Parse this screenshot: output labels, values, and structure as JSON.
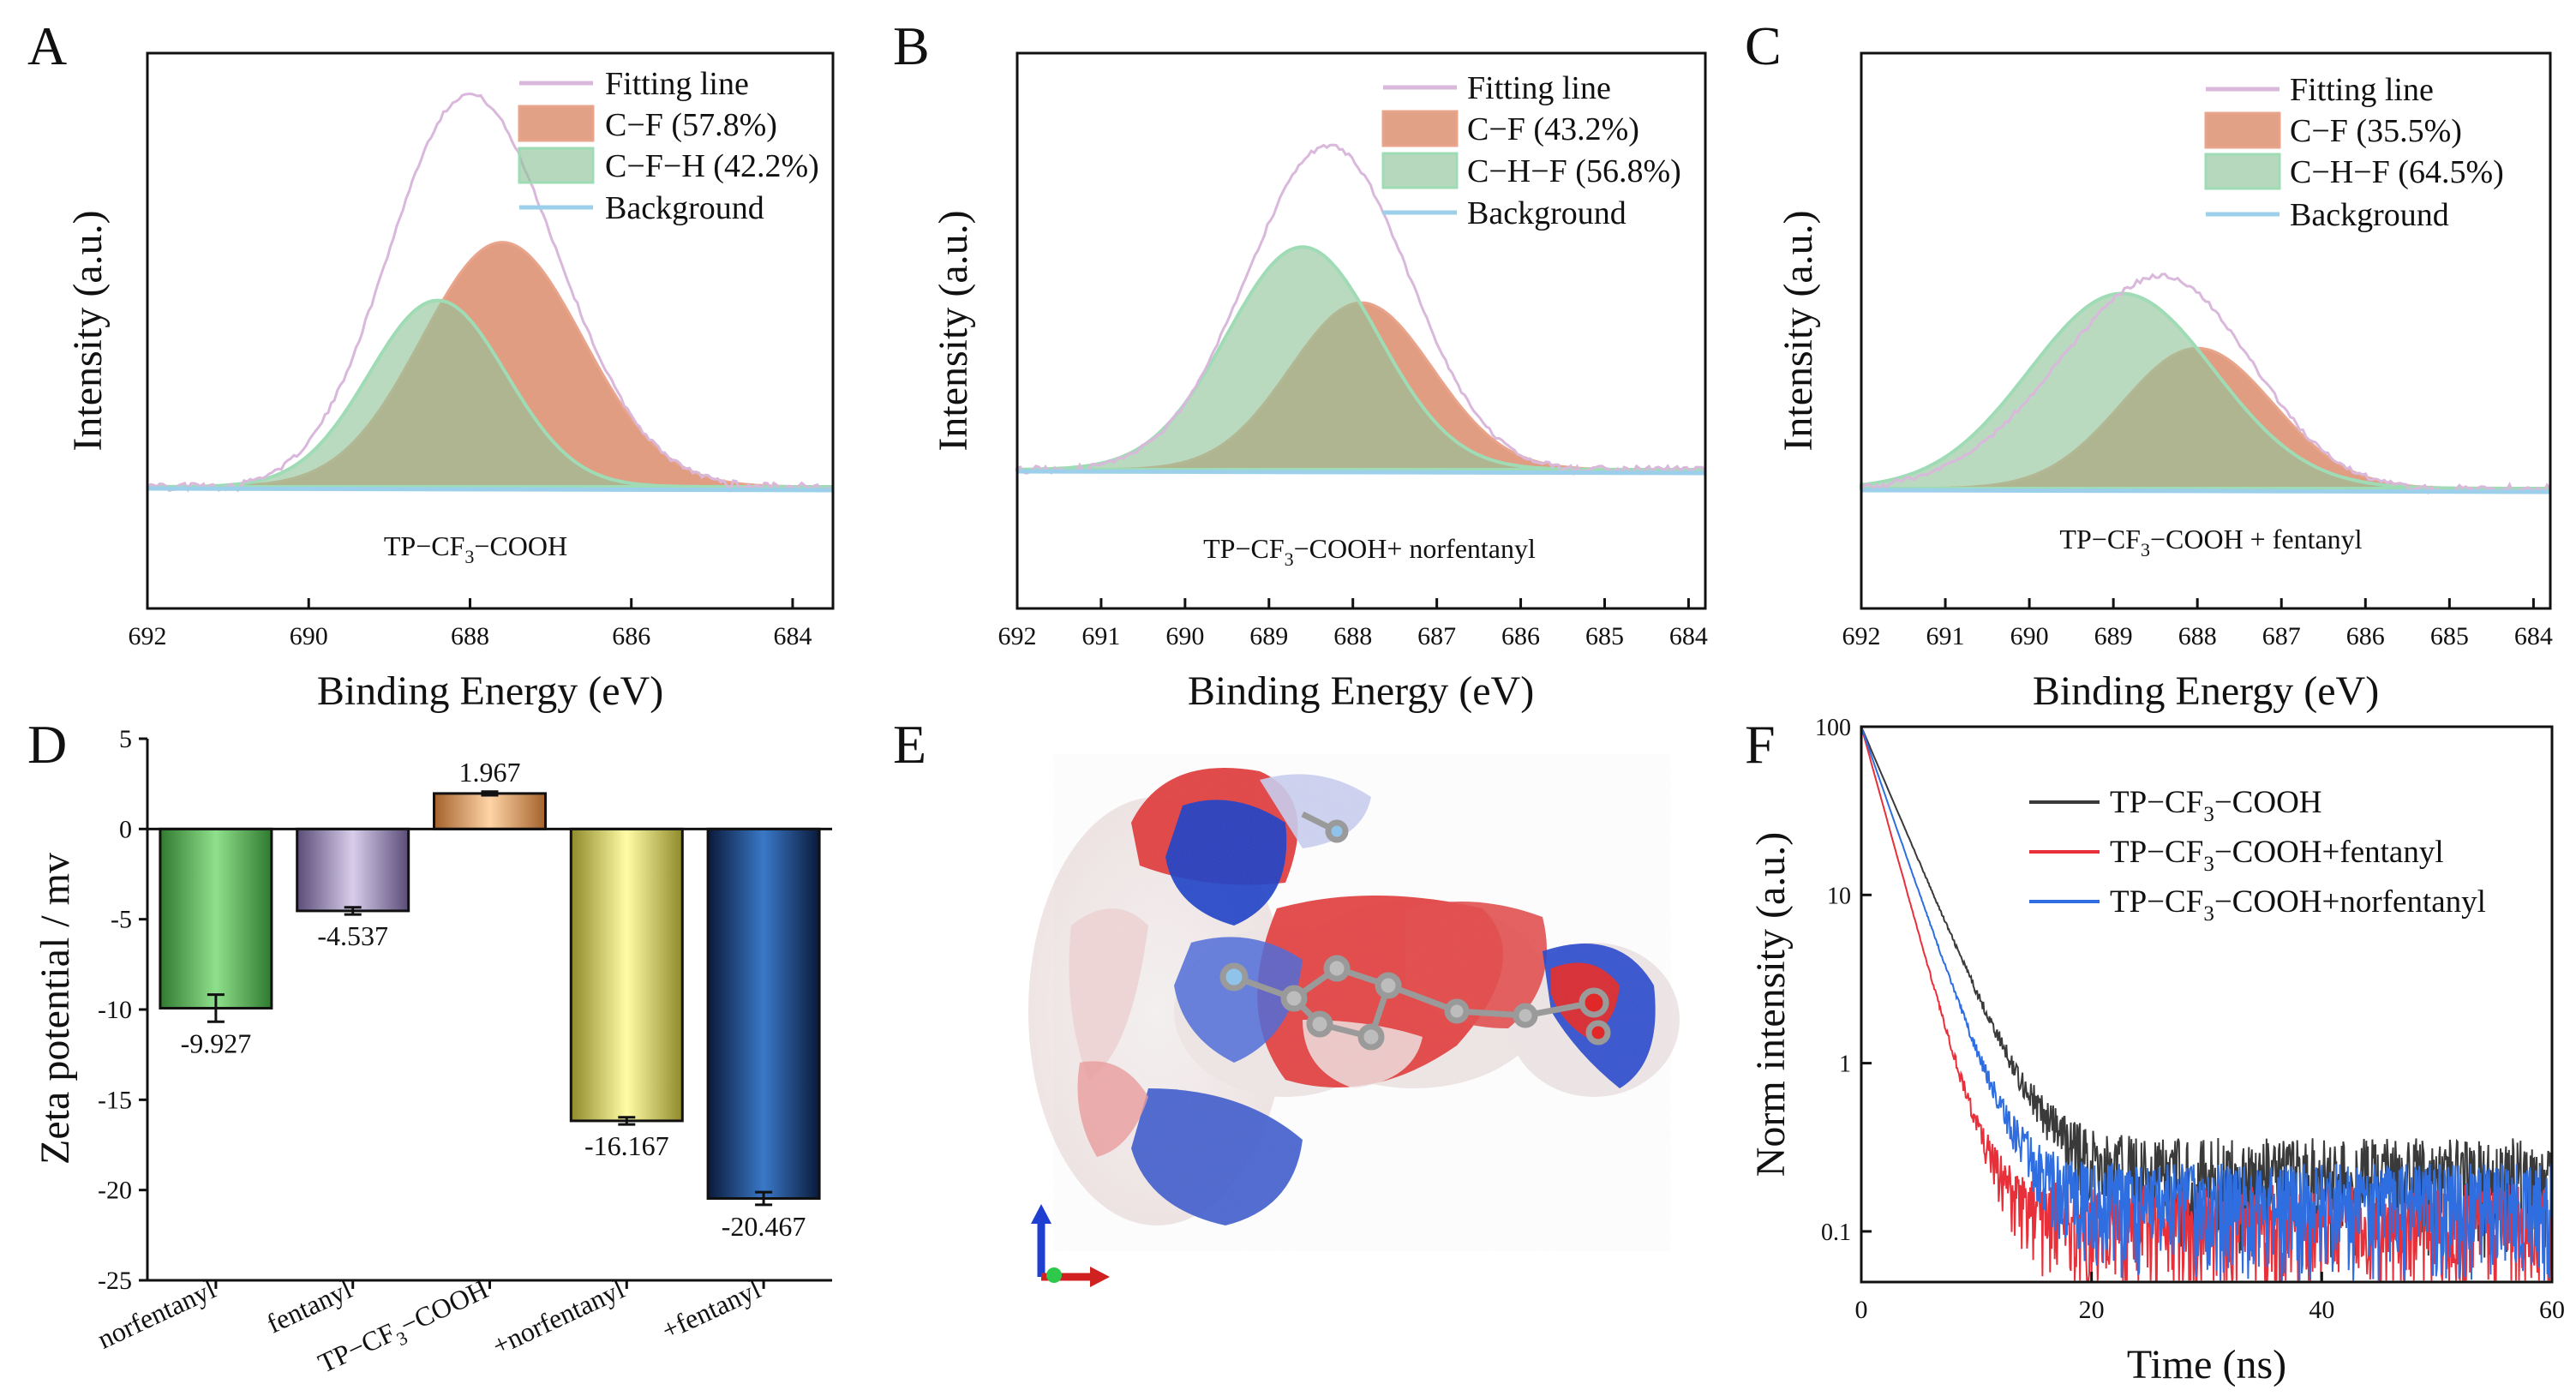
{
  "colors": {
    "fitting": "#d9b8dc",
    "cf_line": "#e9a48c",
    "cf_fill": "#d7825f",
    "chf_line": "#9fdcb5",
    "chf_fill": "#8fc49a",
    "background": "#9cd0ea",
    "bar_norfentanyl": "#78c878",
    "bar_fentanyl": "#a394bd",
    "bar_tp": "#f0b57f",
    "bar_plus_norfentanyl": "#f5ef8a",
    "bar_plus_fentanyl": "#2f64a8",
    "decay_tp": "#3a3a3a",
    "decay_fentanyl": "#e8303a",
    "decay_norfentanyl": "#2f6ee0"
  },
  "chart_data": [
    {
      "panel": "A",
      "type": "area",
      "xlabel": "Binding Energy (eV)",
      "ylabel": "Intensity (a.u.)",
      "xlim": [
        692,
        683.5
      ],
      "xticks": [
        "692",
        "690",
        "688",
        "686",
        "684"
      ],
      "sample_label_parts": [
        "TP−CF",
        "3",
        "−COOH"
      ],
      "legend": [
        "Fitting line",
        "C−F (57.8%)",
        "C−F−H (42.2%)",
        "Background"
      ],
      "series": [
        {
          "name": "C−F",
          "center": 687.6,
          "height": 0.63,
          "width": 1.0
        },
        {
          "name": "C−F−H",
          "center": 688.4,
          "height": 0.48,
          "width": 0.85
        },
        {
          "name": "Fitting line",
          "peak_x": 688.1,
          "peak_y": 1.0
        },
        {
          "name": "Background",
          "value": 0
        }
      ]
    },
    {
      "panel": "B",
      "type": "area",
      "xlabel": "Binding Energy (eV)",
      "ylabel": "Intensity (a.u.)",
      "xlim": [
        692,
        683.8
      ],
      "xticks": [
        "692",
        "691",
        "690",
        "689",
        "688",
        "687",
        "686",
        "685",
        "684"
      ],
      "sample_label_parts": [
        "TP−CF",
        "3",
        "−COOH+ norfentanyl"
      ],
      "legend": [
        "Fitting line",
        "C−F (43.2%)",
        "C−H−F (56.8%)",
        "Background"
      ],
      "series": [
        {
          "name": "C−F",
          "center": 687.9,
          "height": 0.45,
          "width": 0.85
        },
        {
          "name": "C−H−F",
          "center": 688.6,
          "height": 0.6,
          "width": 0.9
        },
        {
          "name": "Fitting line",
          "peak_x": 688.35,
          "peak_y": 0.9
        },
        {
          "name": "Background",
          "value": 0
        }
      ]
    },
    {
      "panel": "C",
      "type": "area",
      "xlabel": "Binding Energy (eV)",
      "ylabel": "Intensity (a.u.)",
      "xlim": [
        692,
        683.8
      ],
      "xticks": [
        "692",
        "691",
        "690",
        "689",
        "688",
        "687",
        "686",
        "685",
        "684"
      ],
      "sample_label_parts": [
        "TP−CF",
        "3",
        "−COOH + fentanyl"
      ],
      "legend": [
        "Fitting line",
        "C−F (35.5%)",
        "C−H−F (64.5%)",
        "Background"
      ],
      "series": [
        {
          "name": "C−F",
          "center": 688.0,
          "height": 0.36,
          "width": 0.9
        },
        {
          "name": "C−H−F",
          "center": 688.9,
          "height": 0.5,
          "width": 1.1
        },
        {
          "name": "Fitting line",
          "peak_x": 688.5,
          "peak_y": 0.7
        },
        {
          "name": "Background",
          "value": 0
        }
      ]
    },
    {
      "panel": "D",
      "type": "bar",
      "ylabel": "Zeta potential / mv",
      "ylim": [
        -25,
        5
      ],
      "yticks": [
        "5",
        "0",
        "-5",
        "-10",
        "-15",
        "-20",
        "-25"
      ],
      "categories": [
        "norfentanyl",
        "fentanyl",
        "TP−CF3−COOH",
        "+norfentanyl",
        "+fentanyl"
      ],
      "category_parts": [
        [
          "norfentanyl"
        ],
        [
          "fentanyl"
        ],
        [
          "TP−CF",
          "3",
          "−COOH"
        ],
        [
          "+norfentanyl"
        ],
        [
          "+fentanyl"
        ]
      ],
      "values": [
        -9.927,
        -4.537,
        1.967,
        -16.167,
        -20.467
      ],
      "value_labels": [
        "-9.927",
        "-4.537",
        "1.967",
        "-16.167",
        "-20.467"
      ],
      "errors": [
        0.75,
        0.2,
        0.1,
        0.2,
        0.35
      ]
    },
    {
      "panel": "F",
      "type": "line",
      "xlabel": "Time (ns)",
      "ylabel": "Norm intensity (a.u.)",
      "xlim": [
        0,
        60
      ],
      "ylim": [
        0.05,
        100
      ],
      "yscale": "log",
      "xticks": [
        "0",
        "20",
        "40",
        "60"
      ],
      "yticks": [
        "100",
        "10",
        "1",
        "0.1"
      ],
      "legend_parts": [
        [
          "TP−CF",
          "3",
          "−COOH"
        ],
        [
          "TP−CF",
          "3",
          "−COOH+fentanyl"
        ],
        [
          "TP−CF",
          "3",
          "−COOH+norfentanyl"
        ]
      ],
      "series": [
        {
          "name": "TP−CF3−COOH",
          "tau": 2.7,
          "floor": 0.17
        },
        {
          "name": "TP−CF3−COOH+fentanyl",
          "tau": 1.75,
          "floor": 0.09
        },
        {
          "name": "TP−CF3−COOH+norfentanyl",
          "tau": 2.2,
          "floor": 0.12
        }
      ]
    }
  ],
  "panels": {
    "A": "A",
    "B": "B",
    "C": "C",
    "D": "D",
    "E": "E",
    "F": "F"
  }
}
